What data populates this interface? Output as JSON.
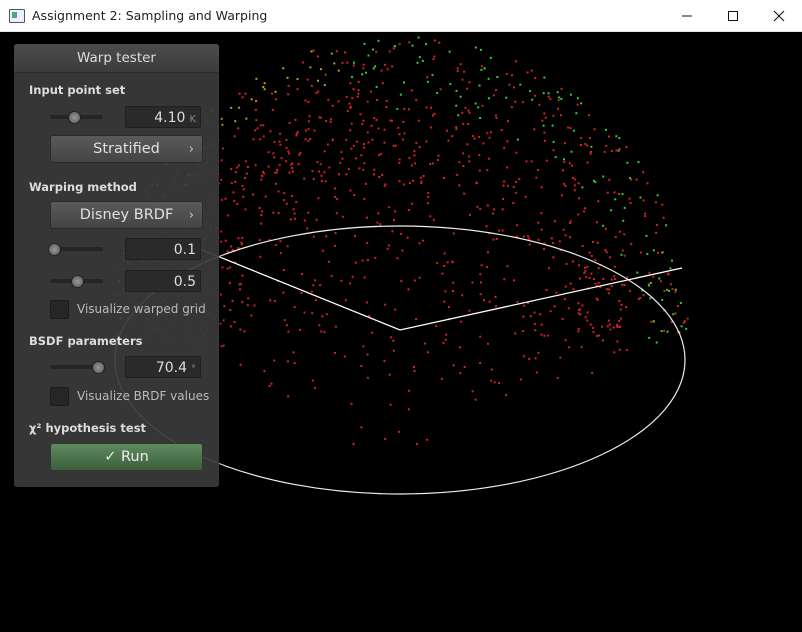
{
  "window": {
    "title": "Assignment 2: Sampling and Warping"
  },
  "icons": {
    "minimize": "minimize-icon",
    "maximize": "maximize-icon",
    "close": "close-icon",
    "chevron": "chevron-right-icon",
    "check": "checkmark-icon"
  },
  "panel": {
    "title": "Warp tester",
    "input_point_set": {
      "label": "Input point set",
      "count_value": "4.10",
      "count_unit": "K",
      "mode_button": "Stratified"
    },
    "warping_method": {
      "label": "Warping method",
      "method_button": "Disney BRDF",
      "param1_value": "0.1",
      "param2_value": "0.5",
      "visualize_grid_label": "Visualize warped grid",
      "visualize_grid_checked": false
    },
    "bsdf_parameters": {
      "label": "BSDF parameters",
      "value": "70.4",
      "unit": "°",
      "visualize_brdf_label": "Visualize BRDF values",
      "visualize_brdf_checked": false
    },
    "hypothesis_test": {
      "label": "χ² hypothesis test",
      "run_button": "Run",
      "run_icon": "✓"
    }
  },
  "colors": {
    "background": "#000000",
    "point_red": "#d22222",
    "point_green": "#33cc33",
    "run_button": "#4b734b"
  }
}
